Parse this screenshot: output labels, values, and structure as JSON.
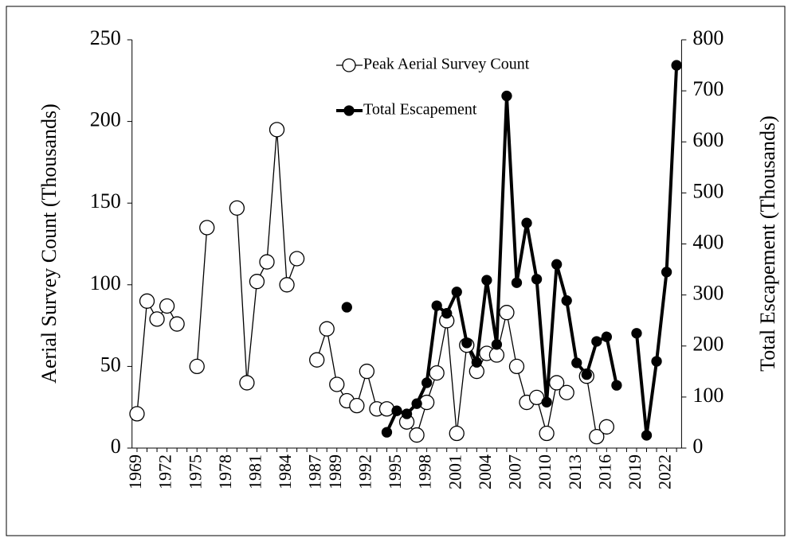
{
  "chart_data": {
    "type": "line",
    "categories": [
      "1969",
      null,
      null,
      "1972",
      null,
      null,
      "1975",
      null,
      null,
      "1978",
      null,
      null,
      "1981",
      null,
      null,
      "1984",
      null,
      null,
      "1987",
      null,
      "1989",
      null,
      null,
      "1992",
      null,
      null,
      "1995",
      null,
      null,
      "1998",
      null,
      null,
      "2001",
      null,
      null,
      "2004",
      null,
      null,
      "2007",
      null,
      null,
      "2010",
      null,
      null,
      "2013",
      null,
      null,
      "2016",
      null,
      null,
      "2019",
      null,
      null,
      "2022",
      null
    ],
    "series": [
      {
        "name": "Peak Aerial Survey Count",
        "color": "#000000",
        "marker": "open",
        "values": [
          21,
          90,
          79,
          87,
          76,
          null,
          50,
          135,
          null,
          null,
          147,
          40,
          102,
          114,
          195,
          100,
          116,
          null,
          54,
          73,
          39,
          29,
          26,
          47,
          24,
          24,
          null,
          16,
          8,
          28,
          46,
          78,
          9,
          63,
          47,
          58,
          57,
          83,
          50,
          28,
          31,
          9,
          40,
          34,
          null,
          44,
          7,
          13,
          null,
          null,
          null,
          null,
          null,
          null,
          null
        ]
      },
      {
        "name": "Total Escapement",
        "color": "#000000",
        "marker": "filled",
        "axis": "y2",
        "values": [
          null,
          null,
          null,
          null,
          null,
          null,
          null,
          null,
          null,
          null,
          null,
          null,
          null,
          null,
          null,
          null,
          null,
          null,
          null,
          null,
          null,
          276,
          null,
          null,
          null,
          31,
          73,
          67,
          87,
          128,
          279,
          264,
          306,
          206,
          168,
          329,
          203,
          690,
          324,
          441,
          331,
          90,
          360,
          289,
          167,
          144,
          209,
          218,
          123,
          null,
          225,
          25,
          170,
          345,
          750
        ]
      }
    ],
    "ylabel": "Aerial Survey Count (Thousands)",
    "y2label": "Total Escapement (Thousands)",
    "ylim": [
      0,
      250
    ],
    "yticks": [
      0,
      50,
      100,
      150,
      200,
      250
    ],
    "y2lim": [
      0,
      800
    ],
    "y2ticks": [
      0,
      100,
      200,
      300,
      400,
      500,
      600,
      700,
      800
    ]
  }
}
